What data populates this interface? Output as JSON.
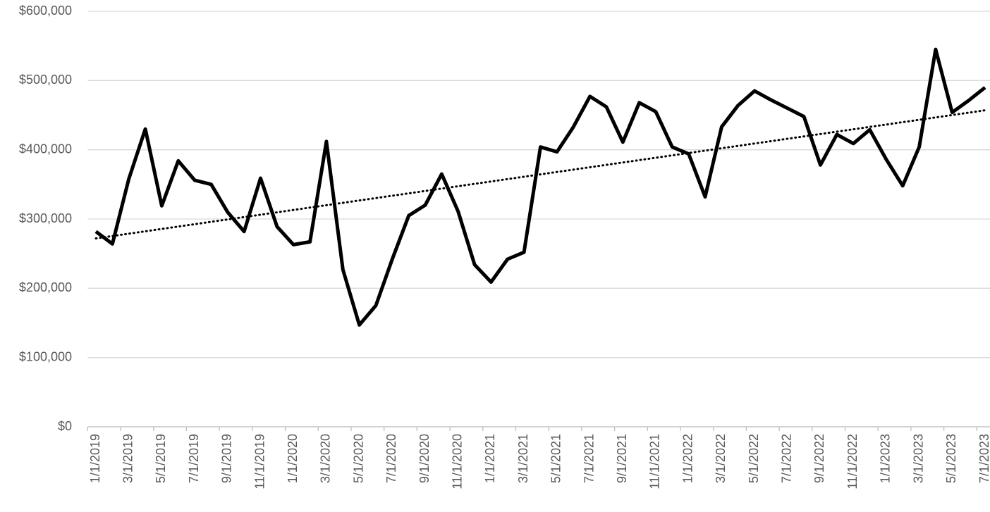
{
  "chart_data": {
    "type": "line",
    "categories": [
      "1/1/2019",
      null,
      "3/1/2019",
      null,
      "5/1/2019",
      null,
      "7/1/2019",
      null,
      "9/1/2019",
      null,
      "11/1/2019",
      null,
      "1/1/2020",
      null,
      "3/1/2020",
      null,
      "5/1/2020",
      null,
      "7/1/2020",
      null,
      "9/1/2020",
      null,
      "11/1/2020",
      null,
      "1/1/2021",
      null,
      "3/1/2021",
      null,
      "5/1/2021",
      null,
      "7/1/2021",
      null,
      "9/1/2021",
      null,
      "11/1/2021",
      null,
      "1/1/2022",
      null,
      "3/1/2022",
      null,
      "5/1/2022",
      null,
      "7/1/2022",
      null,
      "9/1/2022",
      null,
      "11/1/2022",
      null,
      "1/1/2023",
      null,
      "3/1/2023",
      null,
      "5/1/2023",
      null,
      "7/1/2023"
    ],
    "values": [
      282000,
      264000,
      358000,
      430000,
      319000,
      384000,
      356000,
      350000,
      310000,
      282000,
      359000,
      289000,
      263000,
      267000,
      412000,
      227000,
      147000,
      175000,
      242000,
      305000,
      320000,
      365000,
      311000,
      234000,
      209000,
      242000,
      252000,
      404000,
      397000,
      433000,
      477000,
      462000,
      411000,
      468000,
      455000,
      404000,
      394000,
      332000,
      433000,
      464000,
      485000,
      472000,
      460000,
      448000,
      378000,
      422000,
      409000,
      429000,
      386000,
      348000,
      404000,
      545000,
      454000,
      471000,
      490000
    ],
    "color": "#000000",
    "trendline": [
      272000,
      457000
    ],
    "ylim": [
      0,
      600000
    ],
    "yticks": [
      {
        "value": 0,
        "label": "$0"
      },
      {
        "value": 100000,
        "label": "$100,000"
      },
      {
        "value": 200000,
        "label": "$200,000"
      },
      {
        "value": 300000,
        "label": "$300,000"
      },
      {
        "value": 400000,
        "label": "$400,000"
      },
      {
        "value": 500000,
        "label": "$500,000"
      },
      {
        "value": 600000,
        "label": "$600,000"
      }
    ],
    "grid": true
  }
}
